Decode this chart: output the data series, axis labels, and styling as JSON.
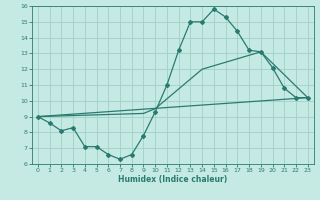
{
  "xlabel": "Humidex (Indice chaleur)",
  "xlim": [
    -0.5,
    23.5
  ],
  "ylim": [
    6,
    16
  ],
  "xticks": [
    0,
    1,
    2,
    3,
    4,
    5,
    6,
    7,
    8,
    9,
    10,
    11,
    12,
    13,
    14,
    15,
    16,
    17,
    18,
    19,
    20,
    21,
    22,
    23
  ],
  "yticks": [
    6,
    7,
    8,
    9,
    10,
    11,
    12,
    13,
    14,
    15,
    16
  ],
  "bg_color": "#c5eae4",
  "line_color": "#2a7b6f",
  "grid_color": "#a0d0c8",
  "line1_x": [
    0,
    1,
    2,
    3,
    4,
    5,
    6,
    7,
    8,
    9,
    10,
    11,
    12,
    13,
    14,
    15,
    16,
    17,
    18,
    19,
    20,
    21,
    22,
    23
  ],
  "line1_y": [
    9.0,
    8.6,
    8.1,
    8.3,
    7.1,
    7.1,
    6.6,
    6.3,
    6.6,
    7.8,
    9.3,
    11.0,
    13.2,
    15.0,
    15.0,
    15.8,
    15.3,
    14.4,
    13.2,
    13.1,
    12.1,
    10.8,
    10.2,
    10.2
  ],
  "line2_x": [
    0,
    23
  ],
  "line2_y": [
    9.0,
    10.2
  ],
  "line3_x": [
    0,
    9,
    10,
    14,
    19,
    23
  ],
  "line3_y": [
    9.0,
    9.2,
    9.5,
    12.0,
    13.1,
    10.2
  ]
}
